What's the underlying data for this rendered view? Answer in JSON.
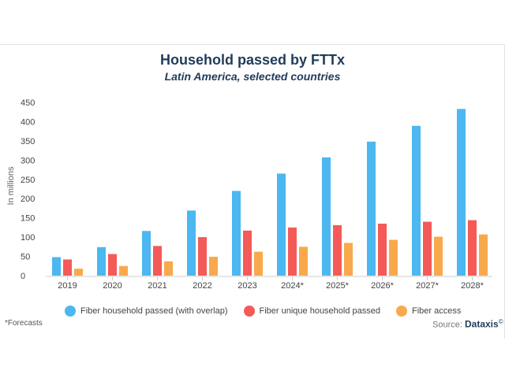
{
  "chart_data": {
    "type": "bar",
    "title": "Household passed by FTTx",
    "subtitle": "Latin America, selected countries",
    "ylabel": "In millions",
    "xlabel": "",
    "ylim": [
      0,
      450
    ],
    "yticks": [
      0,
      50,
      100,
      150,
      200,
      250,
      300,
      350,
      400,
      450
    ],
    "categories": [
      "2019",
      "2020",
      "2021",
      "2022",
      "2023",
      "2024*",
      "2025*",
      "2026*",
      "2027*",
      "2028*"
    ],
    "series": [
      {
        "name": "Fiber household passed (with overlap)",
        "color": "#4cb7f0",
        "values": [
          48,
          74,
          116,
          169,
          220,
          265,
          307,
          348,
          389,
          433
        ]
      },
      {
        "name": "Fiber unique household passed",
        "color": "#f45a57",
        "values": [
          42,
          56,
          77,
          100,
          117,
          125,
          131,
          135,
          140,
          144
        ]
      },
      {
        "name": "Fiber access",
        "color": "#f9a94b",
        "values": [
          18,
          25,
          37,
          49,
          62,
          75,
          85,
          93,
          101,
          107
        ]
      }
    ],
    "grid": false,
    "legend_position": "bottom"
  },
  "footnote": "*Forecasts",
  "source_label": "Source:",
  "source_brand": "Dataxis",
  "source_mark": "©"
}
